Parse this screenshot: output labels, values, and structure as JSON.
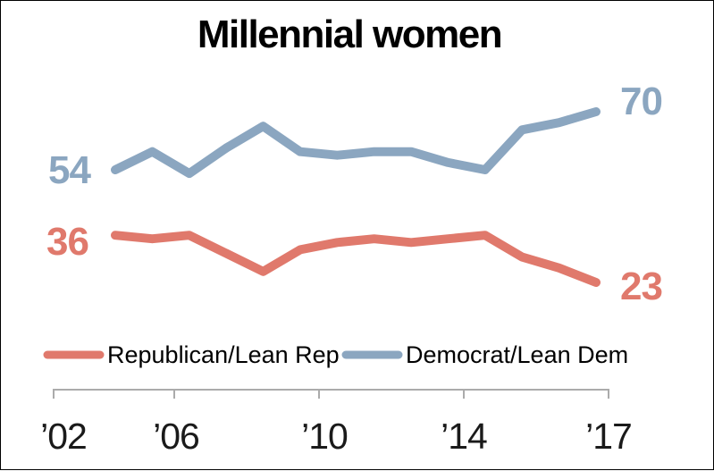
{
  "title": "Millennial women",
  "colors": {
    "dem": "#8BA6C0",
    "rep": "#E0796C",
    "axis": "#ABABAB",
    "title_text": "#000000",
    "tick_text": "#1a1a1a"
  },
  "endpoint_labels": {
    "dem_start": "54",
    "dem_end": "70",
    "rep_start": "36",
    "rep_end": "23"
  },
  "legend": {
    "rep_label": "Republican/Lean Rep",
    "dem_label": "Democrat/Lean Dem"
  },
  "x_ticks": [
    "’02",
    "’06",
    "’10",
    "’14",
    "’17"
  ],
  "chart_data": {
    "type": "line",
    "title": "Millennial women",
    "x": [
      2004,
      2005,
      2006,
      2007,
      2008,
      2009,
      2010,
      2011,
      2012,
      2013,
      2014,
      2015,
      2016,
      2017
    ],
    "x_tick_labels": [
      "'02",
      "'06",
      "'10",
      "'14",
      "'17"
    ],
    "series": [
      {
        "name": "Democrat/Lean Dem",
        "color": "#8BA6C0",
        "values": [
          54,
          59,
          53,
          60,
          66,
          59,
          58,
          59,
          59,
          56,
          54,
          65,
          67,
          70
        ]
      },
      {
        "name": "Republican/Lean Rep",
        "color": "#E0796C",
        "values": [
          36,
          35,
          36,
          31,
          26,
          32,
          34,
          35,
          34,
          35,
          36,
          30,
          27,
          23
        ]
      }
    ],
    "ylim": [
      15,
      80
    ],
    "y_axis_visible": false,
    "grid": false,
    "legend_position": "bottom",
    "annotations": {
      "dem_first_value": 54,
      "dem_last_value": 70,
      "rep_first_value": 36,
      "rep_last_value": 23
    }
  }
}
